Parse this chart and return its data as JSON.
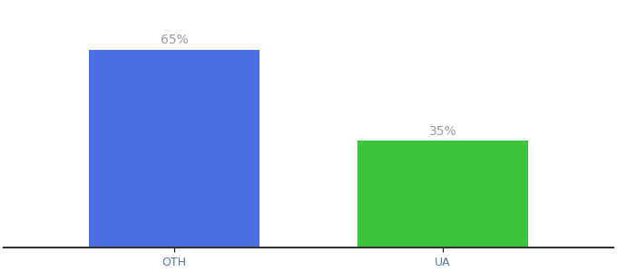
{
  "categories": [
    "OTH",
    "UA"
  ],
  "values": [
    65,
    35
  ],
  "bar_colors": [
    "#4A6FE3",
    "#3DC43C"
  ],
  "label_texts": [
    "65%",
    "35%"
  ],
  "label_color": "#999999",
  "ylim": [
    0,
    80
  ],
  "tick_fontsize": 9,
  "label_fontsize": 10,
  "background_color": "#ffffff",
  "bar_width": 0.28,
  "bar_positions": [
    0.28,
    0.72
  ]
}
